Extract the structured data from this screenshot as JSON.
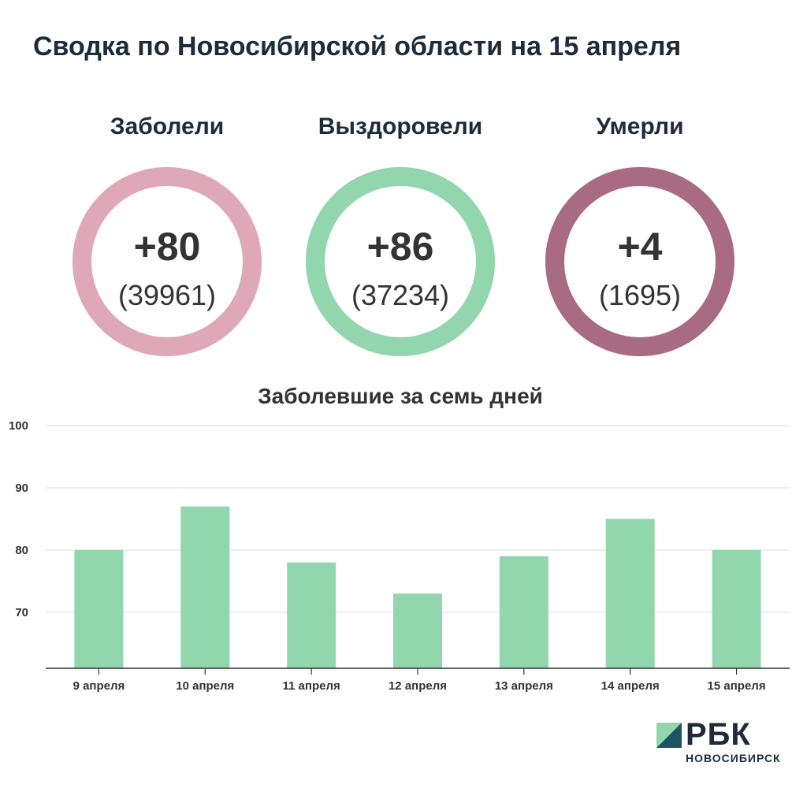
{
  "header": {
    "title": "Сводка по Новосибирской области на 15 апреля"
  },
  "stats": [
    {
      "label": "Заболели",
      "delta": "+80",
      "total": "(39961)",
      "color": "#dfa8b8"
    },
    {
      "label": "Выздоровели",
      "delta": "+86",
      "total": "(37234)",
      "color": "#92d6ad"
    },
    {
      "label": "Умерли",
      "delta": "+4",
      "total": "(1695)",
      "color": "#a96b82"
    }
  ],
  "chart_data": {
    "type": "bar",
    "title": "Заболевшие за семь дней",
    "categories": [
      "9 апреля",
      "10 апреля",
      "11 апреля",
      "12 апреля",
      "13 апреля",
      "14 апреля",
      "15 апреля"
    ],
    "values": [
      80,
      87,
      78,
      73,
      79,
      85,
      80
    ],
    "ylim": [
      61,
      100
    ],
    "yticks": [
      70,
      80,
      90,
      100
    ],
    "bar_color": "#92d6ad",
    "grid": true
  },
  "brand": {
    "name": "РБК",
    "city": "НОВОСИБИРСК",
    "color_light": "#92d6ad",
    "color_dark": "#1f5560"
  }
}
